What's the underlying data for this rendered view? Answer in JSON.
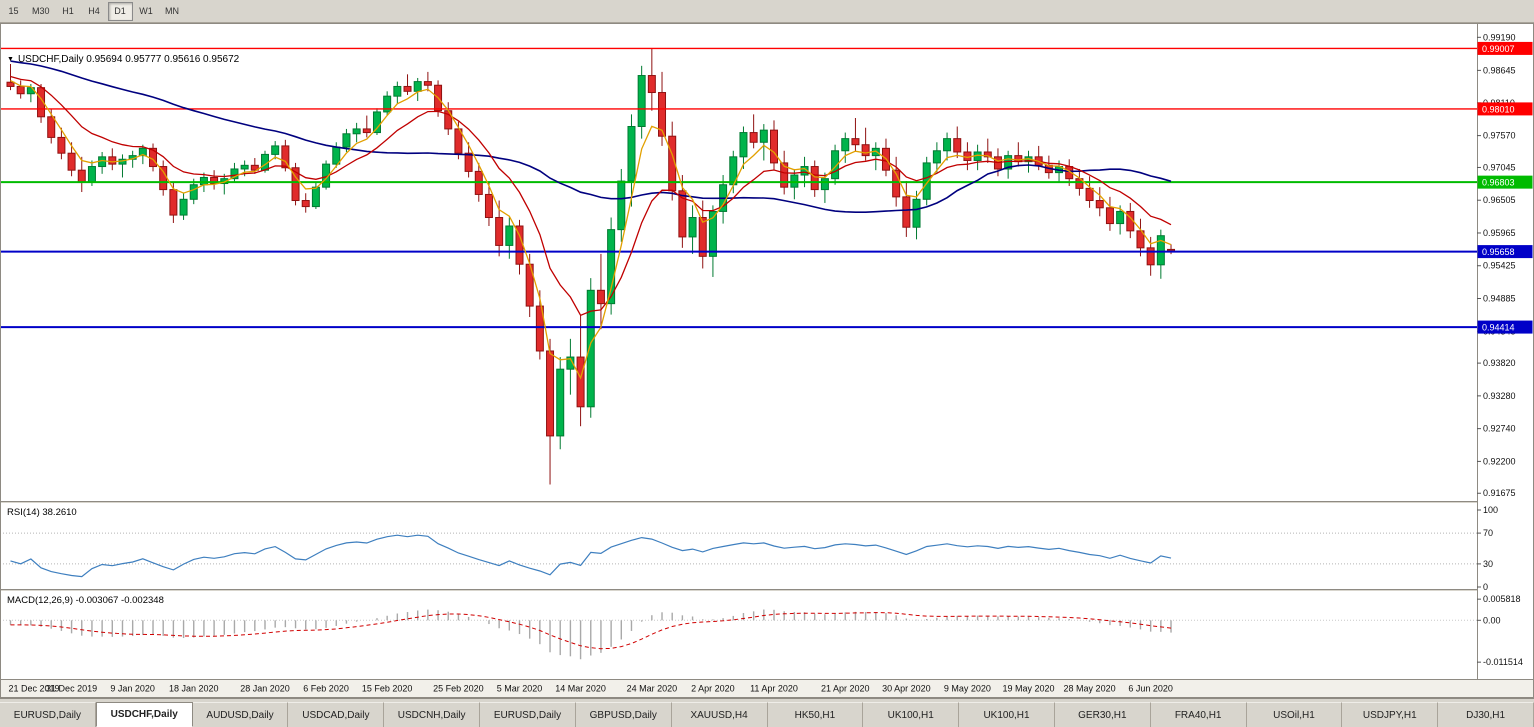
{
  "toolbar": {
    "timeframes": [
      {
        "label": "15",
        "active": false
      },
      {
        "label": "M30",
        "active": false
      },
      {
        "label": "H1",
        "active": false
      },
      {
        "label": "H4",
        "active": false
      },
      {
        "label": "D1",
        "active": true
      },
      {
        "label": "W1",
        "active": false
      },
      {
        "label": "MN",
        "active": false
      }
    ]
  },
  "chart": {
    "title": "USDCHF,Daily 0.95694 0.95777 0.95616 0.95672",
    "ohlc": {
      "open": "0.95694",
      "high": "0.95777",
      "low": "0.95616",
      "close": "0.95672"
    },
    "rsi_label": "RSI(14) 38.2610",
    "macd_label": "MACD(12,26,9) -0.003067 -0.002348"
  },
  "colors": {
    "candle_up": "#00B44C",
    "candle_up_border": "#007a31",
    "candle_down": "#E02B2B",
    "candle_down_border": "#8f1111",
    "ma_slow": "#00007F",
    "ma_mid": "#C00000",
    "ma_fast": "#E2A000",
    "rsi_line": "#3E7FBF",
    "macd_hist": "#A9A9A9",
    "macd_signal": "#D00000",
    "axis_text": "#111111",
    "panel_bg": "#ffffff",
    "chrome_bg": "#d8d5cd"
  },
  "chart_data": {
    "type": "candlestick",
    "symbol": "USDCHF",
    "timeframe": "Daily",
    "title": "USDCHF,Daily 0.95694 0.95777 0.95616 0.95672",
    "ohlc_order": [
      "open",
      "high",
      "low",
      "close"
    ],
    "y_ticks": [
      "0.99190",
      "0.98645",
      "0.98110",
      "0.97570",
      "0.97045",
      "0.96505",
      "0.95965",
      "0.95425",
      "0.94885",
      "0.94345",
      "0.93820",
      "0.93280",
      "0.92740",
      "0.92200",
      "0.91675"
    ],
    "levels": [
      {
        "price": 0.99007,
        "label": "0.99007",
        "color": "#FF0000",
        "width": 1.4
      },
      {
        "price": 0.9801,
        "label": "0.98010",
        "color": "#FF0000",
        "width": 1.4
      },
      {
        "price": 0.96803,
        "label": "0.96803",
        "color": "#00BB00",
        "width": 2
      },
      {
        "price": 0.95658,
        "label": "0.95658",
        "color": "#0000C8",
        "width": 2
      },
      {
        "price": 0.94414,
        "label": "0.94414",
        "color": "#0000C8",
        "width": 2
      }
    ],
    "x_labels": [
      {
        "i": 0,
        "label": "21 Dec 2019"
      },
      {
        "i": 6,
        "label": "31 Dec 2019"
      },
      {
        "i": 12,
        "label": "9 Jan 2020"
      },
      {
        "i": 18,
        "label": "18 Jan 2020"
      },
      {
        "i": 25,
        "label": "28 Jan 2020"
      },
      {
        "i": 31,
        "label": "6 Feb 2020"
      },
      {
        "i": 37,
        "label": "15 Feb 2020"
      },
      {
        "i": 44,
        "label": "25 Feb 2020"
      },
      {
        "i": 50,
        "label": "5 Mar 2020"
      },
      {
        "i": 56,
        "label": "14 Mar 2020"
      },
      {
        "i": 63,
        "label": "24 Mar 2020"
      },
      {
        "i": 69,
        "label": "2 Apr 2020"
      },
      {
        "i": 75,
        "label": "11 Apr 2020"
      },
      {
        "i": 82,
        "label": "21 Apr 2020"
      },
      {
        "i": 88,
        "label": "30 Apr 2020"
      },
      {
        "i": 94,
        "label": "9 May 2020"
      },
      {
        "i": 100,
        "label": "19 May 2020"
      },
      {
        "i": 106,
        "label": "28 May 2020"
      },
      {
        "i": 112,
        "label": "6 Jun 2020"
      }
    ],
    "subcharts": [
      {
        "name": "RSI",
        "label": "RSI(14) 38.2610",
        "ticks": [
          "100",
          "70",
          "30",
          "0"
        ],
        "levels": [
          70,
          30
        ],
        "last_value": 38.261
      },
      {
        "name": "MACD",
        "label": "MACD(12,26,9) -0.003067 -0.002348",
        "ticks": [
          "0.005818",
          "0.00",
          "-0.011514"
        ],
        "macd": -0.003067,
        "signal": -0.002348
      }
    ],
    "candles": [
      [
        0.9845,
        0.9875,
        0.9832,
        0.9838
      ],
      [
        0.9838,
        0.9848,
        0.9818,
        0.9826
      ],
      [
        0.9826,
        0.9842,
        0.9812,
        0.9836
      ],
      [
        0.9836,
        0.9842,
        0.9778,
        0.9788
      ],
      [
        0.9788,
        0.98,
        0.9744,
        0.9754
      ],
      [
        0.9754,
        0.977,
        0.9718,
        0.9728
      ],
      [
        0.9728,
        0.9746,
        0.969,
        0.97
      ],
      [
        0.97,
        0.9722,
        0.9664,
        0.968
      ],
      [
        0.968,
        0.9716,
        0.9674,
        0.9706
      ],
      [
        0.9706,
        0.973,
        0.9694,
        0.9722
      ],
      [
        0.9722,
        0.9736,
        0.97,
        0.971
      ],
      [
        0.971,
        0.9726,
        0.9688,
        0.9718
      ],
      [
        0.9718,
        0.9732,
        0.9704,
        0.9724
      ],
      [
        0.9724,
        0.9742,
        0.971,
        0.9736
      ],
      [
        0.9736,
        0.9744,
        0.9698,
        0.9706
      ],
      [
        0.9706,
        0.9716,
        0.9658,
        0.9668
      ],
      [
        0.9668,
        0.968,
        0.9613,
        0.9626
      ],
      [
        0.9626,
        0.9662,
        0.9618,
        0.9652
      ],
      [
        0.9652,
        0.9686,
        0.9644,
        0.9676
      ],
      [
        0.9676,
        0.9696,
        0.9664,
        0.9688
      ],
      [
        0.9688,
        0.97,
        0.9668,
        0.9678
      ],
      [
        0.9678,
        0.9694,
        0.966,
        0.9686
      ],
      [
        0.9686,
        0.9712,
        0.968,
        0.9702
      ],
      [
        0.9702,
        0.9716,
        0.969,
        0.9708
      ],
      [
        0.9708,
        0.972,
        0.9694,
        0.97
      ],
      [
        0.97,
        0.9732,
        0.9696,
        0.9726
      ],
      [
        0.9726,
        0.9748,
        0.9718,
        0.974
      ],
      [
        0.974,
        0.975,
        0.9698,
        0.9704
      ],
      [
        0.9704,
        0.9712,
        0.9642,
        0.965
      ],
      [
        0.965,
        0.9662,
        0.963,
        0.964
      ],
      [
        0.964,
        0.968,
        0.9636,
        0.9672
      ],
      [
        0.9672,
        0.9716,
        0.9668,
        0.971
      ],
      [
        0.971,
        0.9746,
        0.9704,
        0.9738
      ],
      [
        0.9738,
        0.9768,
        0.973,
        0.976
      ],
      [
        0.976,
        0.9778,
        0.9746,
        0.9768
      ],
      [
        0.9768,
        0.979,
        0.9754,
        0.9762
      ],
      [
        0.9762,
        0.9802,
        0.9758,
        0.9796
      ],
      [
        0.9796,
        0.983,
        0.979,
        0.9822
      ],
      [
        0.9822,
        0.9846,
        0.981,
        0.9838
      ],
      [
        0.9838,
        0.9858,
        0.9824,
        0.983
      ],
      [
        0.983,
        0.9852,
        0.9814,
        0.9846
      ],
      [
        0.9846,
        0.9862,
        0.983,
        0.984
      ],
      [
        0.984,
        0.9848,
        0.9788,
        0.9798
      ],
      [
        0.9798,
        0.9812,
        0.9758,
        0.9768
      ],
      [
        0.9768,
        0.978,
        0.9718,
        0.9728
      ],
      [
        0.9728,
        0.9746,
        0.9688,
        0.9698
      ],
      [
        0.9698,
        0.9712,
        0.9648,
        0.966
      ],
      [
        0.966,
        0.968,
        0.9608,
        0.9622
      ],
      [
        0.9622,
        0.965,
        0.9558,
        0.9576
      ],
      [
        0.9576,
        0.9622,
        0.9554,
        0.9608
      ],
      [
        0.9608,
        0.9618,
        0.9528,
        0.9545
      ],
      [
        0.9545,
        0.9562,
        0.9458,
        0.9476
      ],
      [
        0.9476,
        0.9502,
        0.9388,
        0.9402
      ],
      [
        0.9402,
        0.9422,
        0.9182,
        0.9262
      ],
      [
        0.9262,
        0.9392,
        0.924,
        0.9372
      ],
      [
        0.9372,
        0.9422,
        0.933,
        0.9392
      ],
      [
        0.9392,
        0.9462,
        0.9278,
        0.931
      ],
      [
        0.931,
        0.9522,
        0.9292,
        0.9502
      ],
      [
        0.9502,
        0.9562,
        0.9438,
        0.948
      ],
      [
        0.948,
        0.9622,
        0.9462,
        0.9602
      ],
      [
        0.9602,
        0.9702,
        0.9582,
        0.9682
      ],
      [
        0.9682,
        0.9792,
        0.964,
        0.9772
      ],
      [
        0.9772,
        0.9872,
        0.9752,
        0.9856
      ],
      [
        0.9856,
        0.9901,
        0.9798,
        0.9828
      ],
      [
        0.9828,
        0.9862,
        0.974,
        0.9756
      ],
      [
        0.9756,
        0.978,
        0.965,
        0.9666
      ],
      [
        0.9666,
        0.9692,
        0.9572,
        0.959
      ],
      [
        0.959,
        0.9642,
        0.9562,
        0.9622
      ],
      [
        0.9622,
        0.965,
        0.9538,
        0.9558
      ],
      [
        0.9558,
        0.9642,
        0.9524,
        0.9632
      ],
      [
        0.9632,
        0.9692,
        0.9612,
        0.9676
      ],
      [
        0.9676,
        0.9732,
        0.9662,
        0.9722
      ],
      [
        0.9722,
        0.9772,
        0.9702,
        0.9762
      ],
      [
        0.9762,
        0.9792,
        0.9736,
        0.9746
      ],
      [
        0.9746,
        0.9776,
        0.9716,
        0.9766
      ],
      [
        0.9766,
        0.9782,
        0.97,
        0.9712
      ],
      [
        0.9712,
        0.9732,
        0.966,
        0.9672
      ],
      [
        0.9672,
        0.9702,
        0.9652,
        0.9692
      ],
      [
        0.9692,
        0.9722,
        0.9672,
        0.9706
      ],
      [
        0.9706,
        0.9716,
        0.9656,
        0.9668
      ],
      [
        0.9668,
        0.9696,
        0.9646,
        0.9686
      ],
      [
        0.9686,
        0.9742,
        0.9676,
        0.9732
      ],
      [
        0.9732,
        0.9762,
        0.9712,
        0.9752
      ],
      [
        0.9752,
        0.9786,
        0.973,
        0.9742
      ],
      [
        0.9742,
        0.977,
        0.9716,
        0.9724
      ],
      [
        0.9724,
        0.9746,
        0.97,
        0.9736
      ],
      [
        0.9736,
        0.9752,
        0.969,
        0.97
      ],
      [
        0.97,
        0.9722,
        0.964,
        0.9656
      ],
      [
        0.9656,
        0.9682,
        0.959,
        0.9606
      ],
      [
        0.9606,
        0.9666,
        0.9586,
        0.9652
      ],
      [
        0.9652,
        0.9722,
        0.9642,
        0.9712
      ],
      [
        0.9712,
        0.9746,
        0.9696,
        0.9732
      ],
      [
        0.9732,
        0.9762,
        0.9716,
        0.9752
      ],
      [
        0.9752,
        0.9772,
        0.972,
        0.973
      ],
      [
        0.973,
        0.9746,
        0.97,
        0.9716
      ],
      [
        0.9716,
        0.9742,
        0.97,
        0.973
      ],
      [
        0.973,
        0.9752,
        0.9712,
        0.9722
      ],
      [
        0.9722,
        0.9736,
        0.969,
        0.9702
      ],
      [
        0.9702,
        0.9732,
        0.9686,
        0.9724
      ],
      [
        0.9724,
        0.9746,
        0.9706,
        0.9714
      ],
      [
        0.9714,
        0.9732,
        0.9696,
        0.9722
      ],
      [
        0.9722,
        0.974,
        0.97,
        0.9708
      ],
      [
        0.9708,
        0.9724,
        0.9686,
        0.9696
      ],
      [
        0.9696,
        0.9716,
        0.968,
        0.9706
      ],
      [
        0.9706,
        0.9718,
        0.9674,
        0.9686
      ],
      [
        0.9686,
        0.9702,
        0.9658,
        0.967
      ],
      [
        0.967,
        0.969,
        0.9638,
        0.965
      ],
      [
        0.965,
        0.9672,
        0.9624,
        0.9638
      ],
      [
        0.9638,
        0.9656,
        0.96,
        0.9612
      ],
      [
        0.9612,
        0.9642,
        0.9594,
        0.9632
      ],
      [
        0.9632,
        0.9646,
        0.9588,
        0.96
      ],
      [
        0.96,
        0.962,
        0.9558,
        0.9572
      ],
      [
        0.9572,
        0.959,
        0.9526,
        0.9544
      ],
      [
        0.9544,
        0.9602,
        0.9521,
        0.9592
      ],
      [
        0.95694,
        0.95777,
        0.95616,
        0.95672
      ]
    ]
  },
  "tabs": [
    {
      "label": "EURUSD,Daily",
      "active": false
    },
    {
      "label": "USDCHF,Daily",
      "active": true
    },
    {
      "label": "AUDUSD,Daily",
      "active": false
    },
    {
      "label": "USDCAD,Daily",
      "active": false
    },
    {
      "label": "USDCNH,Daily",
      "active": false
    },
    {
      "label": "EURUSD,Daily",
      "active": false
    },
    {
      "label": "GBPUSD,Daily",
      "active": false
    },
    {
      "label": "XAUUSD,H4",
      "active": false
    },
    {
      "label": "HK50,H1",
      "active": false
    },
    {
      "label": "UK100,H1",
      "active": false
    },
    {
      "label": "UK100,H1",
      "active": false
    },
    {
      "label": "GER30,H1",
      "active": false
    },
    {
      "label": "FRA40,H1",
      "active": false
    },
    {
      "label": "USOil,H1",
      "active": false
    },
    {
      "label": "USDJPY,H1",
      "active": false
    },
    {
      "label": "DJ30,H1",
      "active": false
    }
  ]
}
